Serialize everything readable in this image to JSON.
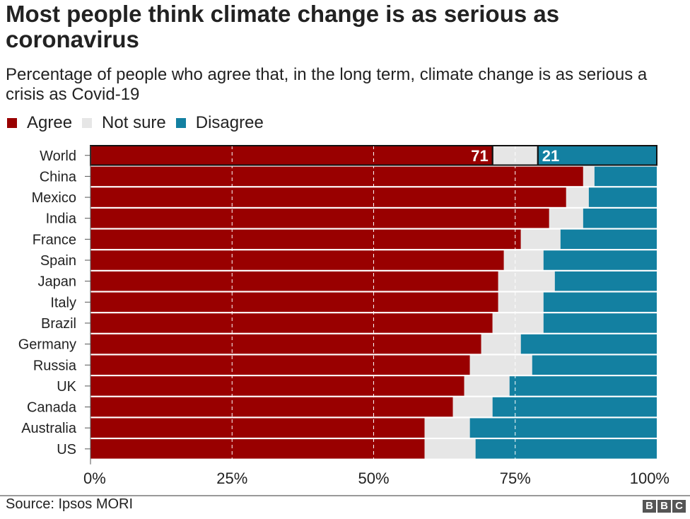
{
  "chart_data": {
    "type": "bar",
    "orientation": "horizontal-stacked-100",
    "title": "Most people think climate change is as serious as coronavirus",
    "subtitle": "Percentage of people who agree that, in the long term, climate change is as serious a crisis as Covid-19",
    "categories": [
      "World",
      "China",
      "Mexico",
      "India",
      "France",
      "Spain",
      "Japan",
      "Italy",
      "Brazil",
      "Germany",
      "Russia",
      "UK",
      "Canada",
      "Australia",
      "US"
    ],
    "series": [
      {
        "name": "Agree",
        "color": "#990000",
        "values": [
          71,
          87,
          84,
          81,
          76,
          73,
          72,
          72,
          71,
          69,
          67,
          66,
          64,
          59,
          59
        ]
      },
      {
        "name": "Not sure",
        "color": "#e6e6e6",
        "values": [
          8,
          2,
          4,
          6,
          7,
          7,
          10,
          8,
          9,
          7,
          11,
          8,
          7,
          8,
          9
        ]
      },
      {
        "name": "Disagree",
        "color": "#1380a1",
        "values": [
          21,
          11,
          12,
          13,
          17,
          20,
          18,
          20,
          20,
          24,
          22,
          26,
          29,
          33,
          32
        ]
      }
    ],
    "data_labels": {
      "World": {
        "Agree": "71",
        "Disagree": "21"
      }
    },
    "xlim": [
      0,
      100
    ],
    "xticks": [
      "0%",
      "25%",
      "50%",
      "75%",
      "100%"
    ],
    "grid": "dashed vertical at 25/50/75",
    "legend": "top-left",
    "source": "Source: Ipsos MORI",
    "logo": "BBC"
  }
}
